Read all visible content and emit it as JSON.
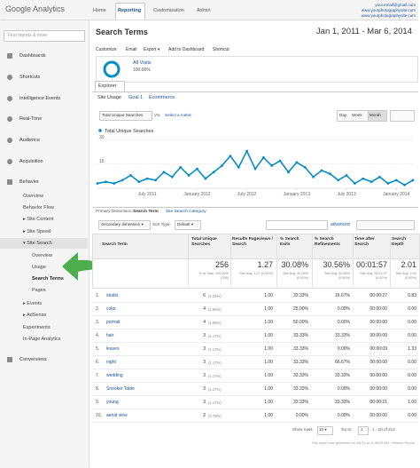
{
  "header": {
    "logo": "Google Analytics",
    "tabs": [
      "Home",
      "Reporting",
      "Customization",
      "Admin"
    ],
    "account": [
      "your.email@gmail.com",
      "www.yourphotographysite.com",
      "www.yourphotographysite.com"
    ]
  },
  "sidebar": {
    "search": "Find reports & more",
    "items": [
      "Dashboards",
      "Shortcuts",
      "Intelligence Events",
      "Real-Time",
      "Audience",
      "Acquisition",
      "Behavior"
    ],
    "behavior": [
      "Overview",
      "Behavior Flow",
      "▸ Site Content",
      "▸ Site Speed",
      "▾ Site Search"
    ],
    "site_search": [
      "Overview",
      "Usage",
      "Search Terms",
      "Pages"
    ],
    "more": [
      "▸ Events",
      "▸ AdSense",
      "Experiments",
      "In-Page Analytics"
    ],
    "conversions": "Conversions"
  },
  "report": {
    "title": "Search Terms",
    "date_range": "Jan 1, 2011 - Mar 6, 2014",
    "actions": [
      "Customize",
      "Email",
      "Export ▾",
      "Add to Dashboard",
      "Shortcut"
    ],
    "segment": {
      "name": "All Visits",
      "share": "100.00%"
    },
    "tab": "Explorer",
    "subtabs": [
      "Site Usage",
      "Goal 1",
      "Ecommerce"
    ],
    "metric": "Total Unique Searches",
    "vs": "VS.",
    "select_metric": "Select a metric",
    "periods": [
      "Day",
      "Week",
      "Month"
    ]
  },
  "chart_data": {
    "type": "line",
    "x": [
      "2011-01",
      "2011-02",
      "2011-03",
      "2011-04",
      "2011-05",
      "2011-06",
      "2011-07",
      "2011-08",
      "2011-09",
      "2011-10",
      "2011-11",
      "2011-12",
      "2012-01",
      "2012-02",
      "2012-03",
      "2012-04",
      "2012-05",
      "2012-06",
      "2012-07",
      "2012-08",
      "2012-09",
      "2012-10",
      "2012-11",
      "2012-12",
      "2013-01",
      "2013-02",
      "2013-03",
      "2013-04",
      "2013-05",
      "2013-06",
      "2013-07",
      "2013-08",
      "2013-09",
      "2013-10",
      "2013-11",
      "2013-12",
      "2014-01",
      "2014-02",
      "2014-03"
    ],
    "series": [
      {
        "name": "Total Unique Searches",
        "color": "#058dc7",
        "values": [
          3,
          4,
          3,
          5,
          8,
          4,
          6,
          5,
          10,
          7,
          13,
          8,
          12,
          6,
          10,
          14,
          20,
          13,
          23,
          12,
          19,
          14,
          17,
          10,
          16,
          13,
          7,
          11,
          9,
          5,
          8,
          3,
          6,
          4,
          7,
          3,
          5,
          2,
          5
        ]
      }
    ],
    "ylim": [
      0,
      33
    ],
    "yticks": [
      15,
      30
    ],
    "xticks": [
      {
        "value": "2011-07",
        "label": "July 2011"
      },
      {
        "value": "2012-01",
        "label": "January 2012"
      },
      {
        "value": "2012-07",
        "label": "July 2012"
      },
      {
        "value": "2013-01",
        "label": "January 2013"
      },
      {
        "value": "2013-07",
        "label": "July 2013"
      },
      {
        "value": "2014-01",
        "label": "January 2014"
      }
    ],
    "grid": true
  },
  "table": {
    "primary_label": "Primary Dimension:",
    "primary": "Search Term",
    "alt": "Site Search Category",
    "secondary": "Secondary dimension ▾",
    "sort_label": "Sort Type:",
    "sort": "Default ▾",
    "advanced": "advanced",
    "columns": [
      "Search Term",
      "Total Unique Searches",
      "Results Pageviews / Search",
      "% Search Exits",
      "% Search Refinements",
      "Time after Search",
      "Search Depth"
    ],
    "totals": [
      [
        "256",
        "% of Total: 100.00% (256)"
      ],
      [
        "1.27",
        "Site Avg: 1.27 (0.00%)"
      ],
      [
        "30.08%",
        "Site Avg: 30.08% (0.00%)"
      ],
      [
        "30.56%",
        "Site Avg: 30.56% (0.00%)"
      ],
      [
        "00:01:57",
        "Site Avg: 00:01:57 (0.00%)"
      ],
      [
        "2.01",
        "Site Avg: 2.01 (0.00%)"
      ]
    ],
    "rows": [
      [
        "1.",
        "studio",
        "6",
        "(2.34%)",
        "1.00",
        "33.33%",
        "16.67%",
        "00:00:27",
        "0.83"
      ],
      [
        "2.",
        "color",
        "4",
        "(1.56%)",
        "1.00",
        "25.00%",
        "0.00%",
        "00:00:00",
        "0.00"
      ],
      [
        "3.",
        "portrait",
        "4",
        "(1.56%)",
        "1.00",
        "50.00%",
        "0.00%",
        "00:00:00",
        "0.00"
      ],
      [
        "4.",
        "hair",
        "3",
        "(1.17%)",
        "1.00",
        "33.33%",
        "33.33%",
        "00:00:00",
        "0.00"
      ],
      [
        "5.",
        "leaves",
        "3",
        "(1.17%)",
        "1.00",
        "33.33%",
        "0.00%",
        "00:00:09",
        "1.33"
      ],
      [
        "6.",
        "night",
        "3",
        "(1.17%)",
        "1.00",
        "33.33%",
        "66.67%",
        "00:00:00",
        "0.00"
      ],
      [
        "7.",
        "wedding",
        "3",
        "(1.17%)",
        "1.00",
        "33.33%",
        "33.33%",
        "00:00:00",
        "0.00"
      ],
      [
        "8.",
        "Snooker Table",
        "3",
        "(1.17%)",
        "1.00",
        "33.33%",
        "0.00%",
        "00:00:00",
        "0.00"
      ],
      [
        "9.",
        "young",
        "3",
        "(1.17%)",
        "1.00",
        "33.33%",
        "33.33%",
        "00:00:21",
        "1.00"
      ],
      [
        "10.",
        "aerial view",
        "2",
        "(0.78%)",
        "1.00",
        "0.00%",
        "0.00%",
        "00:00:00",
        "0.00"
      ]
    ]
  },
  "footer": {
    "show_rows": "Show rows:",
    "rows": "10 ▾",
    "goto": "Go to:",
    "page": "1",
    "range": "1 - 10 of 212",
    "generated": "This report was generated on 3/6/14 at 11:35:00 AM - Refresh Report"
  }
}
